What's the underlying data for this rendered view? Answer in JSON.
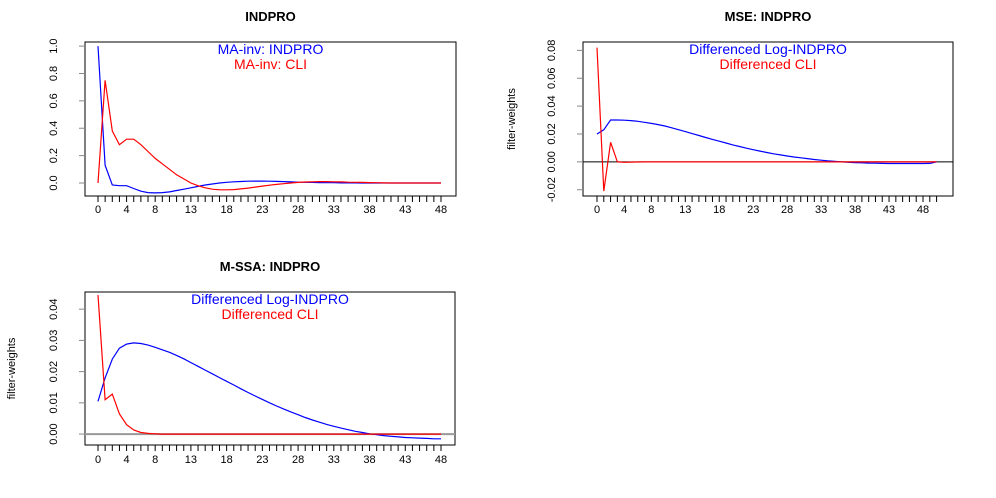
{
  "chart_data": [
    {
      "type": "line",
      "title": "INDPRO",
      "xlabel": "",
      "ylabel": "",
      "x_tick_labels": [
        "0",
        "4",
        "8",
        "13",
        "18",
        "23",
        "28",
        "33",
        "38",
        "43",
        "48"
      ],
      "y_tick_labels": [
        "0.0",
        "0.2",
        "0.4",
        "0.6",
        "0.8",
        "1.0"
      ],
      "xlim": [
        0,
        48
      ],
      "ylim": [
        -0.095,
        1.03
      ],
      "zero_line": false,
      "legend_position": "top-center",
      "series": [
        {
          "name": "MA-inv: INDPRO",
          "color": "#0000ff",
          "values": [
            1.0,
            0.13,
            -0.015,
            -0.02,
            -0.02,
            -0.04,
            -0.06,
            -0.07,
            -0.072,
            -0.07,
            -0.065,
            -0.055,
            -0.045,
            -0.035,
            -0.025,
            -0.015,
            -0.007,
            0,
            0.005,
            0.009,
            0.011,
            0.013,
            0.014,
            0.014,
            0.013,
            0.012,
            0.01,
            0.008,
            0.006,
            0.005,
            0.004,
            0.003,
            0.002,
            0.002,
            0.001,
            0.001,
            0.001,
            0,
            0,
            0,
            0,
            0,
            0,
            0,
            0,
            0,
            0,
            0,
            0
          ]
        },
        {
          "name": "MA-inv: CLI",
          "color": "#ff0000",
          "values": [
            0,
            0.75,
            0.38,
            0.28,
            0.32,
            0.32,
            0.28,
            0.23,
            0.18,
            0.14,
            0.1,
            0.06,
            0.03,
            0.0,
            -0.02,
            -0.035,
            -0.045,
            -0.05,
            -0.05,
            -0.048,
            -0.043,
            -0.037,
            -0.03,
            -0.023,
            -0.016,
            -0.01,
            -0.005,
            0,
            0.004,
            0.007,
            0.009,
            0.01,
            0.01,
            0.009,
            0.008,
            0.006,
            0.005,
            0.004,
            0.003,
            0.002,
            0.001,
            0,
            0,
            0,
            0,
            0,
            0,
            0,
            0
          ]
        }
      ]
    },
    {
      "type": "line",
      "title": "MSE: INDPRO",
      "xlabel": "",
      "ylabel": "filter-weights",
      "x_tick_labels": [
        "0",
        "4",
        "8",
        "13",
        "18",
        "23",
        "28",
        "33",
        "38",
        "43",
        "48"
      ],
      "y_tick_labels": [
        "-0.02",
        "0.00",
        "0.02",
        "0.04",
        "0.06",
        "0.08"
      ],
      "xlim": [
        0,
        50
      ],
      "ylim": [
        -0.0245,
        0.086
      ],
      "zero_line": true,
      "legend_position": "top-center",
      "series": [
        {
          "name": "Differenced Log-INDPRO",
          "color": "#0000ff",
          "values": [
            0.02,
            0.023,
            0.03,
            0.03,
            0.0299,
            0.0296,
            0.0291,
            0.0284,
            0.0276,
            0.0267,
            0.0257,
            0.0244,
            0.0231,
            0.0217,
            0.0203,
            0.0189,
            0.0175,
            0.0161,
            0.0148,
            0.0135,
            0.0122,
            0.011,
            0.0098,
            0.0087,
            0.0077,
            0.0067,
            0.0058,
            0.005,
            0.0042,
            0.0035,
            0.0029,
            0.0023,
            0.0017,
            0.0012,
            0.0007,
            0.0003,
            0.0,
            -0.0003,
            -0.0005,
            -0.0007,
            -0.0009,
            -0.001,
            -0.0011,
            -0.0012,
            -0.0012,
            -0.0012,
            -0.0012,
            -0.0012,
            -0.0012,
            -0.0011,
            0
          ]
        },
        {
          "name": "Differenced CLI",
          "color": "#ff0000",
          "values": [
            0.082,
            -0.021,
            0.014,
            0.0,
            -0.0003,
            -0.0002,
            -0.0001,
            0,
            0,
            0,
            0,
            0,
            0,
            0,
            0,
            0,
            0,
            0,
            0,
            0,
            0,
            0,
            0,
            0,
            0,
            0,
            0,
            0,
            0,
            0,
            0,
            0,
            0,
            0,
            0,
            0,
            0,
            0,
            0,
            0,
            0,
            0,
            0,
            0,
            0,
            0,
            0,
            0,
            0,
            0,
            0
          ]
        }
      ]
    },
    {
      "type": "line",
      "title": "M-SSA: INDPRO",
      "xlabel": "",
      "ylabel": "filter-weights",
      "x_tick_labels": [
        "0",
        "4",
        "8",
        "13",
        "18",
        "23",
        "28",
        "33",
        "38",
        "43",
        "48"
      ],
      "y_tick_labels": [
        "0.00",
        "0.01",
        "0.02",
        "0.03",
        "0.04"
      ],
      "xlim": [
        0,
        48
      ],
      "ylim": [
        -0.0035,
        0.0455
      ],
      "zero_line": true,
      "legend_position": "top-center",
      "series": [
        {
          "name": "Differenced Log-INDPRO",
          "color": "#0000ff",
          "values": [
            0.0105,
            0.018,
            0.024,
            0.0275,
            0.0288,
            0.0292,
            0.029,
            0.0285,
            0.0278,
            0.027,
            0.0262,
            0.0252,
            0.0241,
            0.0229,
            0.0217,
            0.0205,
            0.0193,
            0.0181,
            0.0169,
            0.0157,
            0.0145,
            0.0133,
            0.0122,
            0.0111,
            0.01,
            0.009,
            0.008,
            0.0071,
            0.0062,
            0.0053,
            0.0045,
            0.0038,
            0.0031,
            0.0025,
            0.0019,
            0.0014,
            0.0009,
            0.0005,
            0.0001,
            -0.0002,
            -0.0005,
            -0.0007,
            -0.0009,
            -0.0011,
            -0.0012,
            -0.0013,
            -0.0014,
            -0.0015,
            -0.0015
          ]
        },
        {
          "name": "Differenced CLI",
          "color": "#ff0000",
          "values": [
            0.0445,
            0.011,
            0.0128,
            0.0065,
            0.003,
            0.0013,
            0.0005,
            0.0002,
            0.0001,
            0,
            0,
            0,
            0,
            0,
            0,
            0,
            0,
            0,
            0,
            0,
            0,
            0,
            0,
            0,
            0,
            0,
            0,
            0,
            0,
            0,
            0,
            0,
            0,
            0,
            0,
            0,
            0,
            0,
            0,
            0,
            0,
            0,
            0,
            0,
            0,
            0,
            0,
            0,
            0
          ]
        }
      ]
    }
  ]
}
